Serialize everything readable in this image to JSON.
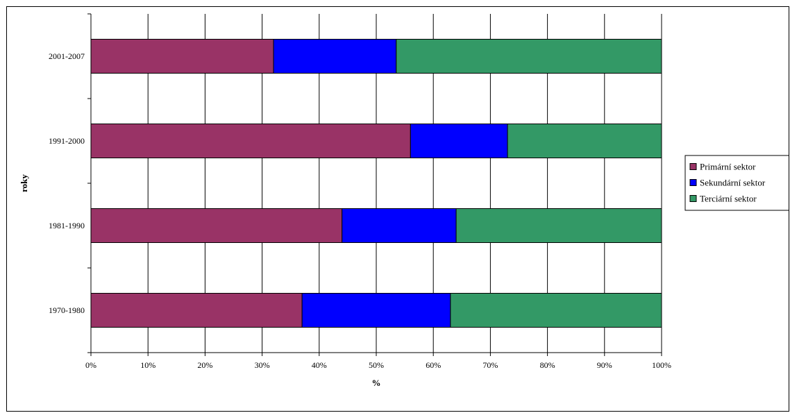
{
  "chart_data": {
    "type": "bar",
    "orientation": "horizontal",
    "stacked": "percent",
    "categories": [
      "1970-1980",
      "1981-1990",
      "1991-2000",
      "2001-2007"
    ],
    "series": [
      {
        "name": "Primární sektor",
        "color": "#993366",
        "values": [
          37,
          44,
          56,
          32
        ]
      },
      {
        "name": "Sekundární sektor",
        "color": "#0000FF",
        "values": [
          26,
          20,
          17,
          21.5
        ]
      },
      {
        "name": "Terciární sektor",
        "color": "#339966",
        "values": [
          37,
          36,
          27,
          46.5
        ]
      }
    ],
    "xlabel": "%",
    "ylabel": "roky",
    "xlim": [
      0,
      100
    ],
    "xticks": [
      "0%",
      "10%",
      "20%",
      "30%",
      "40%",
      "50%",
      "60%",
      "70%",
      "80%",
      "90%",
      "100%"
    ],
    "grid": "vertical",
    "legend_position": "right"
  }
}
